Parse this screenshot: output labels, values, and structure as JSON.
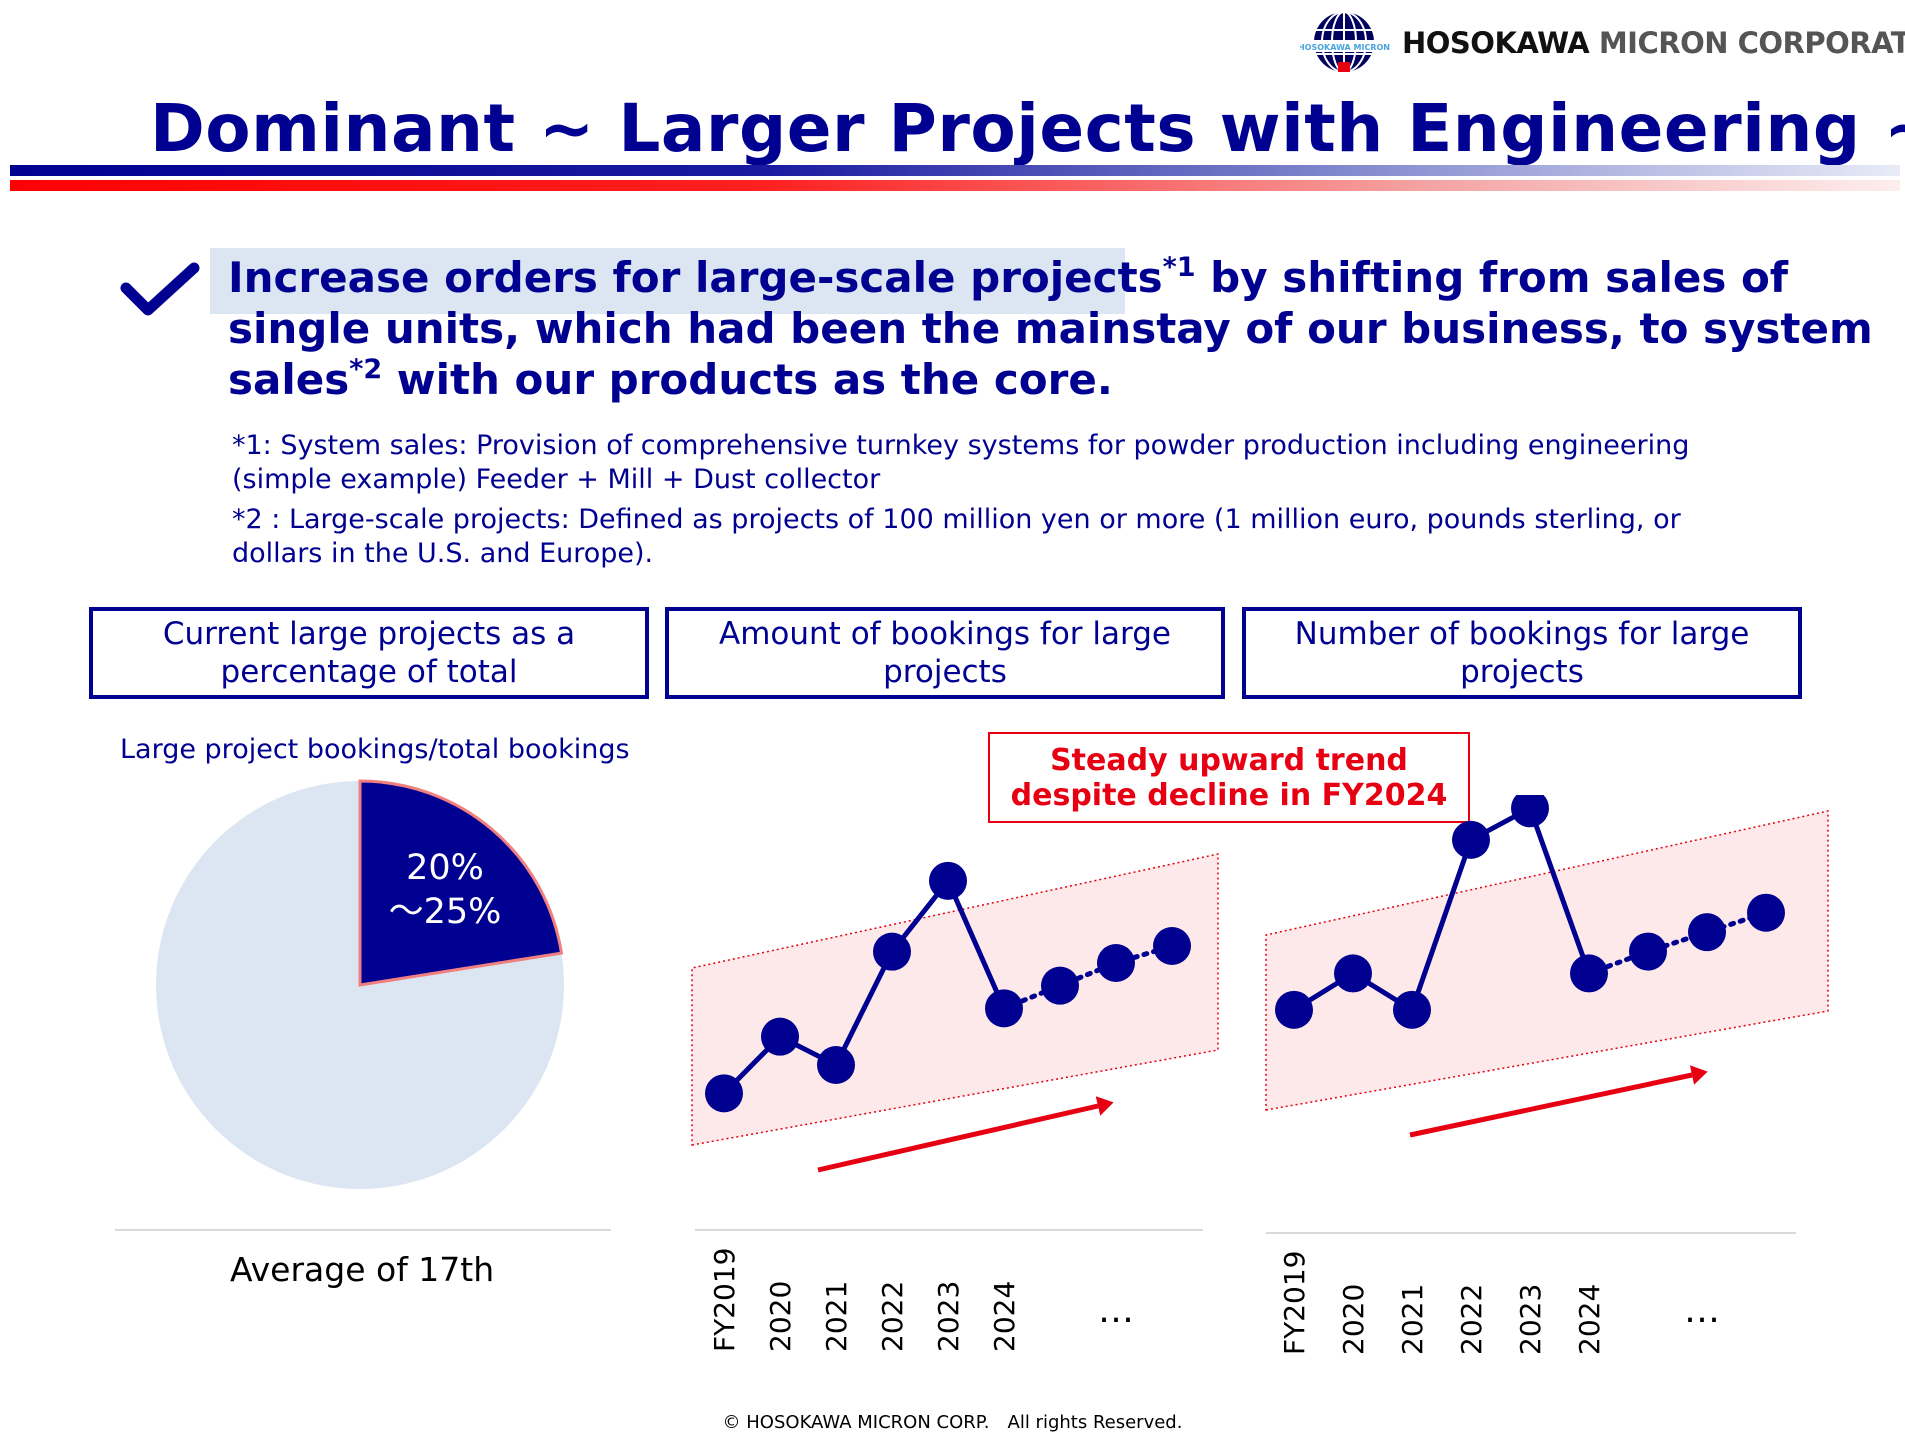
{
  "header": {
    "logo_text": "HOSOKAWA MICRON",
    "company_name_bold": "HOSOKAWA",
    "company_name_rest": "MICRON CORPORATION",
    "title": "Dominant ~ Larger Projects with Engineering ~"
  },
  "bullet": {
    "highlighted_text": "Increase orders for large-scale projects",
    "sup1": "*1",
    "text_part2": " by shifting from sales of single units, which had been the mainstay of our business, to system sales",
    "sup2": "*2",
    "text_part3": " with our products as the core."
  },
  "notes": {
    "note1": "*1: System sales: Provision of comprehensive turnkey systems for powder production including engineering (simple example) Feeder + Mill + Dust collector",
    "note2": "*2 : Large-scale projects: Defined as projects of 100 million yen or more (1 million euro, pounds sterling, or dollars in the U.S. and Europe)."
  },
  "boxes": {
    "box1": "Current large projects as a percentage of total",
    "box2": "Amount of bookings for large projects",
    "box3": "Number of bookings for large projects"
  },
  "pie": {
    "caption": "Large project bookings/total bookings",
    "label_line1": "20%",
    "label_line2": "～25%",
    "footer": "Average of 17th",
    "share_fraction": 0.225,
    "colors": {
      "slice": "#000091",
      "rest": "#dce6f2",
      "slice_edge": "#f08080"
    }
  },
  "trend_box": {
    "line1": "Steady upward trend",
    "line2": "despite decline in FY2024"
  },
  "chart_data": [
    {
      "type": "line",
      "categories": [
        "FY2019",
        "2020",
        "2021",
        "2022",
        "2023",
        "2024",
        "",
        "",
        ""
      ],
      "values": [
        2,
        4,
        3,
        7,
        9.5,
        5,
        5.8,
        6.6,
        7.2
      ],
      "extra_label": "…",
      "ylim": [
        0,
        12
      ],
      "grid": false,
      "colors": {
        "line": "#000091",
        "band": "#fde9ea",
        "band_edge": "#e60012",
        "arrow": "#e60012"
      }
    },
    {
      "type": "line",
      "categories": [
        "FY2019",
        "2020",
        "2021",
        "2022",
        "2023",
        "2024",
        "",
        "",
        ""
      ],
      "values": [
        4,
        5.5,
        4,
        11,
        12.3,
        5.5,
        6.4,
        7.2,
        8
      ],
      "extra_label": "…",
      "ylim": [
        0,
        14
      ],
      "grid": false,
      "colors": {
        "line": "#000091",
        "band": "#fde9ea",
        "band_edge": "#e60012",
        "arrow": "#e60012"
      }
    }
  ],
  "footer": {
    "copyright": "© HOSOKAWA MICRON CORP.　All rights Reserved."
  }
}
